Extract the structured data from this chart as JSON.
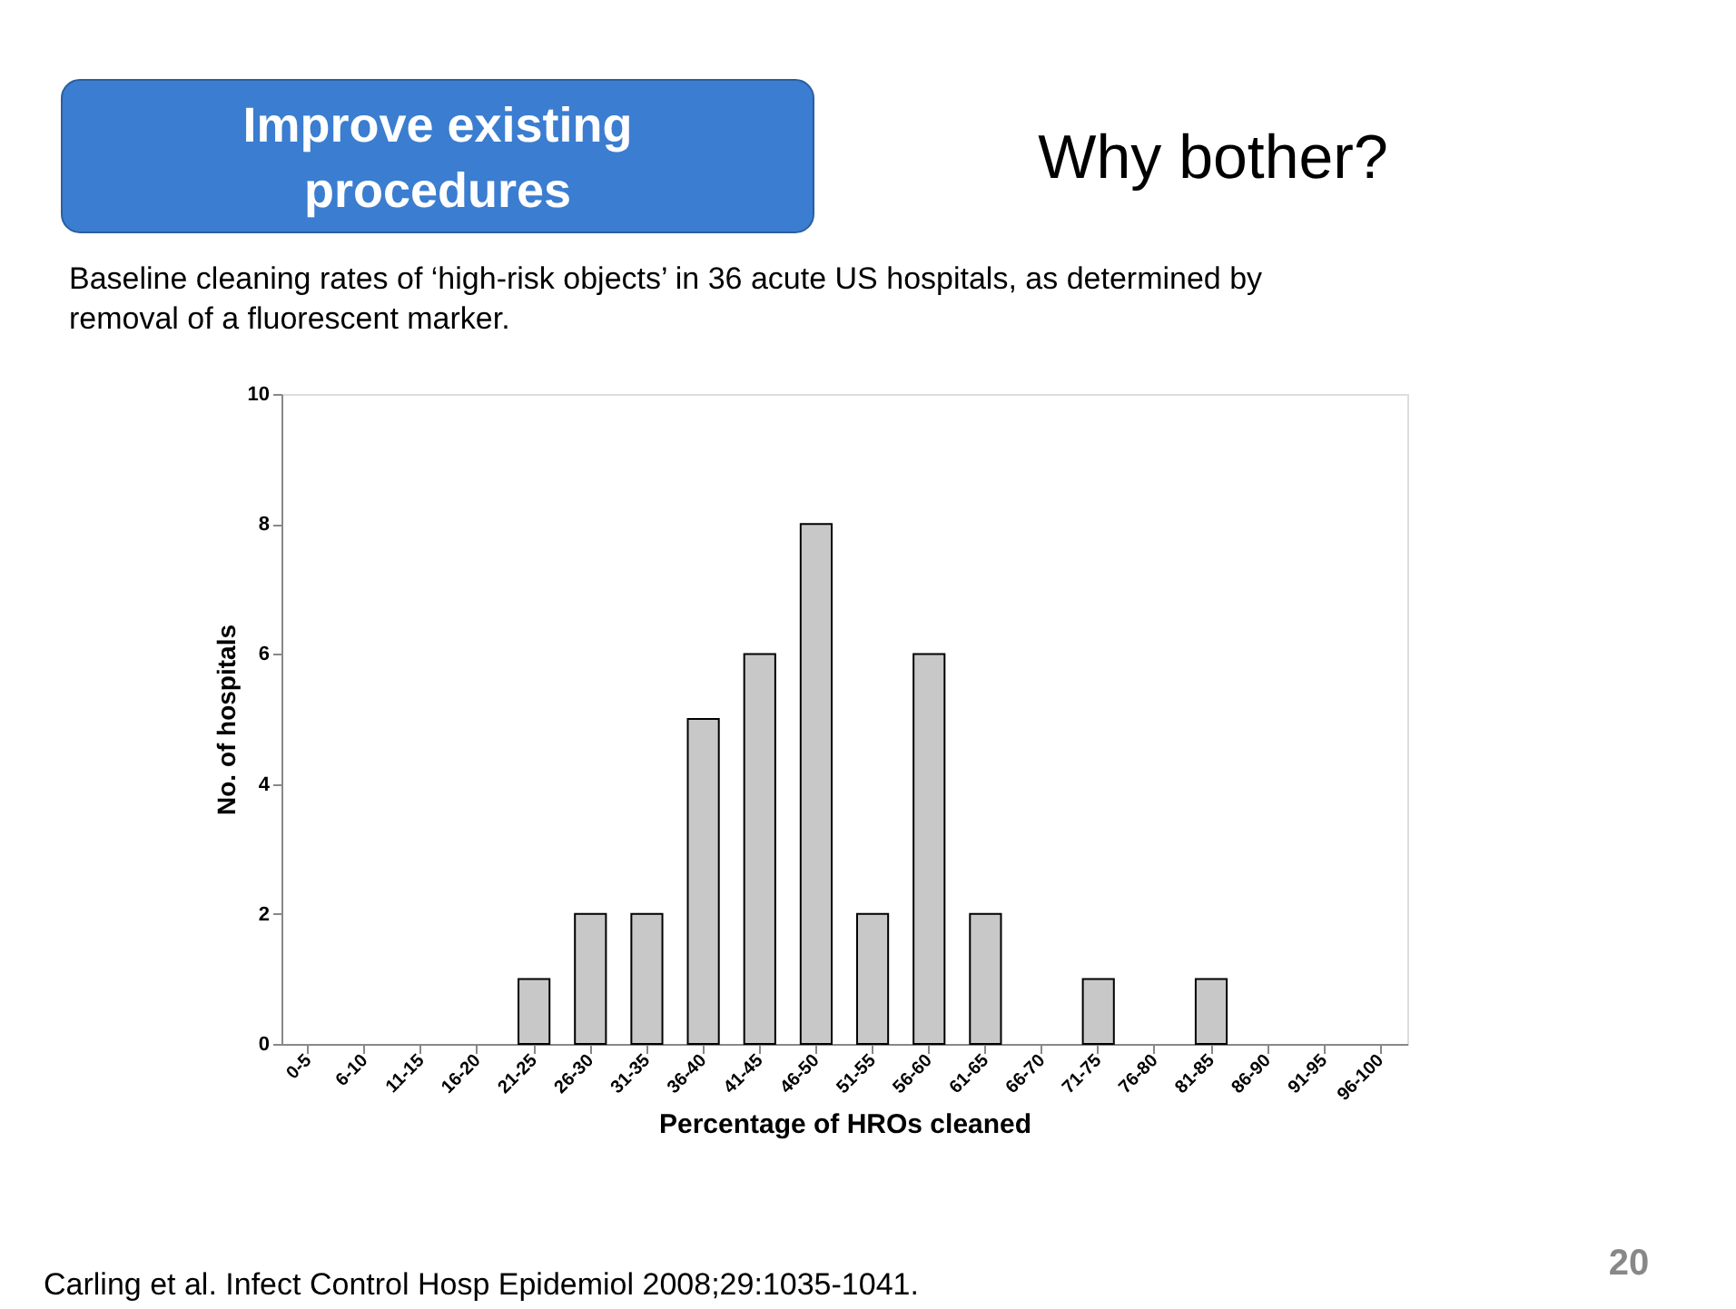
{
  "chart_data": {
    "type": "bar",
    "title": "Why bother?",
    "subtitle": "Baseline cleaning rates of ‘high-risk objects’ in 36 acute US hospitals, as determined by removal of a fluorescent marker.",
    "xlabel": "Percentage of HROs cleaned",
    "ylabel": "No. of hospitals",
    "categories": [
      "0-5",
      "6-10",
      "11-15",
      "16-20",
      "21-25",
      "26-30",
      "31-35",
      "36-40",
      "41-45",
      "46-50",
      "51-55",
      "56-60",
      "61-65",
      "66-70",
      "71-75",
      "76-80",
      "81-85",
      "86-90",
      "91-95",
      "96-100"
    ],
    "values": [
      0,
      0,
      0,
      0,
      1,
      2,
      2,
      5,
      6,
      8,
      2,
      6,
      2,
      0,
      1,
      0,
      1,
      0,
      0,
      0
    ],
    "color": "#c8c8c8",
    "ylim": [
      0,
      10
    ],
    "yticks": [
      0,
      2,
      4,
      6,
      8,
      10
    ],
    "grid": false,
    "annotations": [
      "Improve existing procedures",
      "Carling et al. Infect Control Hosp Epidemiol 2008;29:1035-1041.",
      "20"
    ]
  }
}
